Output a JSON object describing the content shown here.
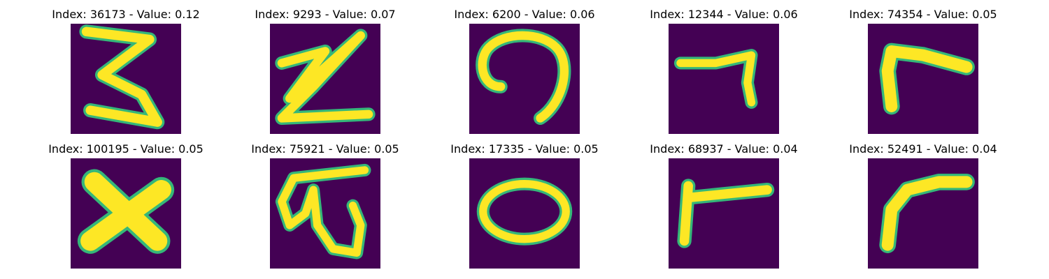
{
  "colors": {
    "background": "#440154",
    "stroke_core": "#fde725",
    "stroke_edge": "#35b779",
    "stroke_mid": "#21918c"
  },
  "panels": [
    {
      "title": "Index: 36173 - Value: 0.12",
      "glyph": "3"
    },
    {
      "title": "Index: 9293 - Value: 0.07",
      "glyph": "z"
    },
    {
      "title": "Index: 6200 - Value: 0.06",
      "glyph": "n"
    },
    {
      "title": "Index: 12344 - Value: 0.06",
      "glyph": "7"
    },
    {
      "title": "Index: 74354 - Value: 0.05",
      "glyph": "r"
    },
    {
      "title": "Index: 100195 - Value: 0.05",
      "glyph": "x"
    },
    {
      "title": "Index: 75921 - Value: 0.05",
      "glyph": "w"
    },
    {
      "title": "Index: 17335 - Value: 0.05",
      "glyph": "o"
    },
    {
      "title": "Index: 68937 - Value: 0.04",
      "glyph": "T"
    },
    {
      "title": "Index: 52491 - Value: 0.04",
      "glyph": "r2"
    }
  ]
}
